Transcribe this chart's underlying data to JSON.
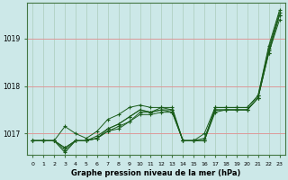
{
  "bg_color": "#cce8e8",
  "plot_bg_color": "#cce8e8",
  "line_color": "#1a5c1a",
  "grid_color_h": "#dd9999",
  "grid_color_v": "#aaccbb",
  "xlabel": "Graphe pression niveau de la mer (hPa)",
  "ylim": [
    1016.55,
    1019.75
  ],
  "xlim": [
    -0.5,
    23.5
  ],
  "yticks": [
    1017,
    1018,
    1019
  ],
  "xticks": [
    0,
    1,
    2,
    3,
    4,
    5,
    6,
    7,
    8,
    9,
    10,
    11,
    12,
    13,
    14,
    15,
    16,
    17,
    18,
    19,
    20,
    21,
    22,
    23
  ],
  "series": [
    [
      1016.85,
      1016.85,
      1016.85,
      1016.7,
      1016.85,
      1016.85,
      1016.95,
      1017.1,
      1017.2,
      1017.35,
      1017.5,
      1017.45,
      1017.5,
      1017.5,
      1016.85,
      1016.85,
      1016.85,
      1017.55,
      1017.55,
      1017.55,
      1017.55,
      1017.8,
      1018.85,
      1019.6
    ],
    [
      1016.85,
      1016.85,
      1016.85,
      1016.7,
      1016.85,
      1016.85,
      1016.9,
      1017.05,
      1017.15,
      1017.25,
      1017.45,
      1017.45,
      1017.5,
      1017.45,
      1016.85,
      1016.85,
      1016.9,
      1017.5,
      1017.5,
      1017.5,
      1017.5,
      1017.75,
      1018.75,
      1019.5
    ],
    [
      1016.85,
      1016.85,
      1016.85,
      1017.15,
      1017.0,
      1016.9,
      1017.05,
      1017.3,
      1017.4,
      1017.55,
      1017.6,
      1017.55,
      1017.55,
      1017.55,
      1016.85,
      1016.85,
      1017.0,
      1017.55,
      1017.55,
      1017.55,
      1017.55,
      1017.8,
      1018.8,
      1019.55
    ],
    [
      1016.85,
      1016.85,
      1016.85,
      1016.65,
      1016.85,
      1016.85,
      1016.9,
      1017.1,
      1017.2,
      1017.35,
      1017.5,
      1017.45,
      1017.55,
      1017.5,
      1016.85,
      1016.85,
      1016.85,
      1017.5,
      1017.5,
      1017.5,
      1017.5,
      1017.75,
      1018.7,
      1019.5
    ],
    [
      1016.85,
      1016.85,
      1016.85,
      1016.6,
      1016.85,
      1016.85,
      1016.9,
      1017.05,
      1017.1,
      1017.25,
      1017.4,
      1017.4,
      1017.45,
      1017.45,
      1016.85,
      1016.85,
      1016.85,
      1017.45,
      1017.5,
      1017.5,
      1017.5,
      1017.75,
      1018.7,
      1019.4
    ]
  ]
}
